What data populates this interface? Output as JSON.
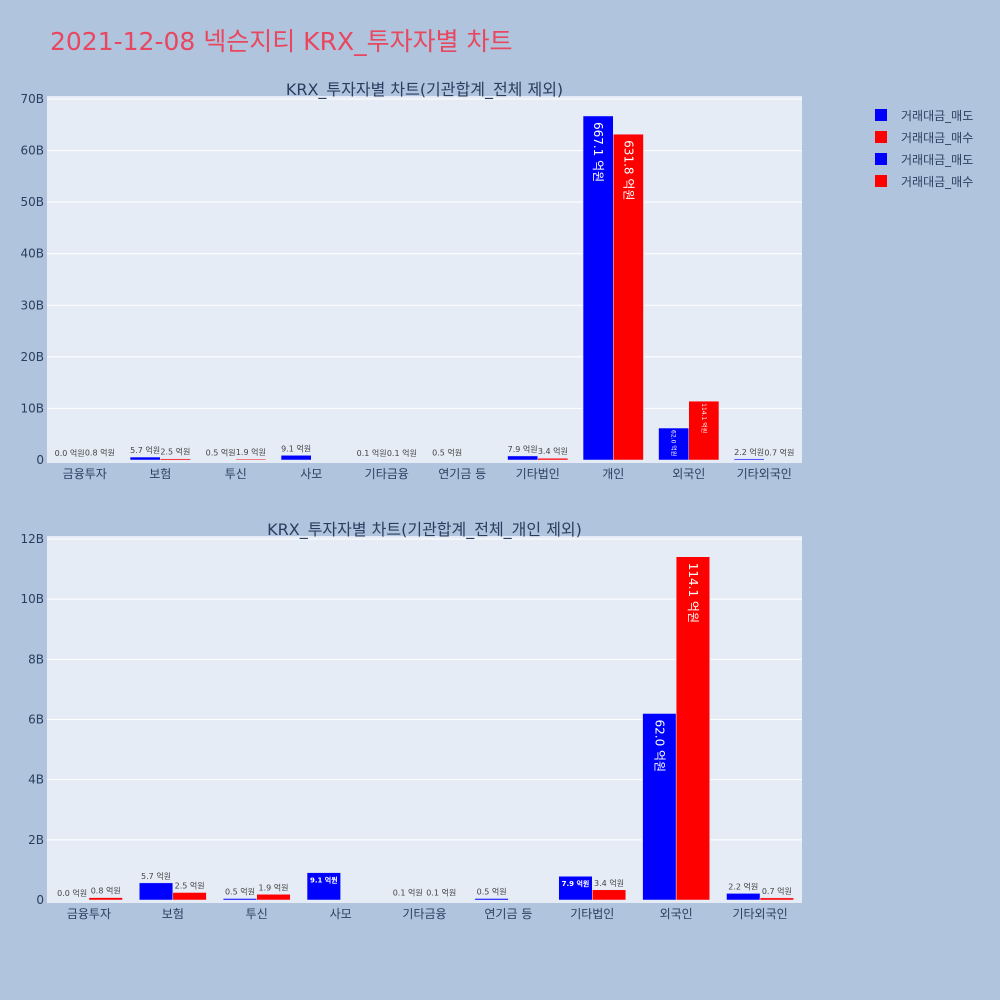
{
  "page": {
    "title": "2021-12-08 넥슨지티 KRX_투자자별 차트"
  },
  "colors": {
    "sell": "#0000ff",
    "buy": "#ff0000",
    "background": "#b0c4de",
    "plot_bg": "#e5ecf6"
  },
  "legend": {
    "items": [
      {
        "label": "거래대금_매도",
        "color": "#0000ff"
      },
      {
        "label": "거래대금_매수",
        "color": "#ff0000"
      },
      {
        "label": "거래대금_매도",
        "color": "#0000ff"
      },
      {
        "label": "거래대금_매수",
        "color": "#ff0000"
      }
    ]
  },
  "chart_data": [
    {
      "type": "bar",
      "title": "KRX_투자자별 차트(기관합계_전체 제외)",
      "categories": [
        "금융투자",
        "보험",
        "투신",
        "사모",
        "기타금융",
        "연기금 등",
        "기타법인",
        "개인",
        "외국인",
        "기타외국인"
      ],
      "series": [
        {
          "name": "거래대금_매도",
          "values": [
            0.0,
            0.57,
            0.05,
            0.91,
            0.01,
            0.05,
            0.79,
            66.71,
            6.2,
            0.22
          ],
          "labels": [
            "0.0 억원",
            "5.7 억원",
            "0.5 억원",
            "9.1 억원",
            "0.1 억원",
            "0.5 억원",
            "7.9 억원",
            "667.1 억원",
            "62.0 억원",
            "2.2 억원"
          ]
        },
        {
          "name": "거래대금_매수",
          "values": [
            0.08,
            0.25,
            0.19,
            0.0,
            0.01,
            0.0,
            0.34,
            63.18,
            11.41,
            0.07
          ],
          "labels": [
            "0.8 억원",
            "2.5 억원",
            "1.9 억원",
            "",
            "0.1 억원",
            "",
            "3.4 억원",
            "631.8 억원",
            "114.1 억원",
            "0.7 억원"
          ]
        }
      ],
      "ylim": [
        0,
        70
      ],
      "yticks": [
        0,
        10,
        20,
        30,
        40,
        50,
        60,
        70
      ],
      "ytick_labels": [
        "0",
        "10B",
        "20B",
        "30B",
        "40B",
        "50B",
        "60B",
        "70B"
      ]
    },
    {
      "type": "bar",
      "title": "KRX_투자자별 차트(기관합계_전체_개인 제외)",
      "categories": [
        "금융투자",
        "보험",
        "투신",
        "사모",
        "기타금융",
        "연기금 등",
        "기타법인",
        "외국인",
        "기타외국인"
      ],
      "series": [
        {
          "name": "거래대금_매도",
          "values": [
            0.0,
            0.57,
            0.05,
            0.91,
            0.01,
            0.05,
            0.79,
            6.2,
            0.22
          ],
          "labels": [
            "0.0 억원",
            "5.7 억원",
            "0.5 억원",
            "9.1 억원",
            "0.1 억원",
            "0.5 억원",
            "7.9 억원",
            "62.0 억원",
            "2.2 억원"
          ]
        },
        {
          "name": "거래대금_매수",
          "values": [
            0.08,
            0.25,
            0.19,
            0.0,
            0.01,
            0.0,
            0.34,
            11.41,
            0.07
          ],
          "labels": [
            "0.8 억원",
            "2.5 억원",
            "1.9 억원",
            "",
            "0.1 억원",
            "",
            "3.4 억원",
            "114.1 억원",
            "0.7 억원"
          ]
        }
      ],
      "ylim": [
        0,
        12
      ],
      "yticks": [
        0,
        2,
        4,
        6,
        8,
        10,
        12
      ],
      "ytick_labels": [
        "0",
        "2B",
        "4B",
        "6B",
        "8B",
        "10B",
        "12B"
      ]
    }
  ]
}
